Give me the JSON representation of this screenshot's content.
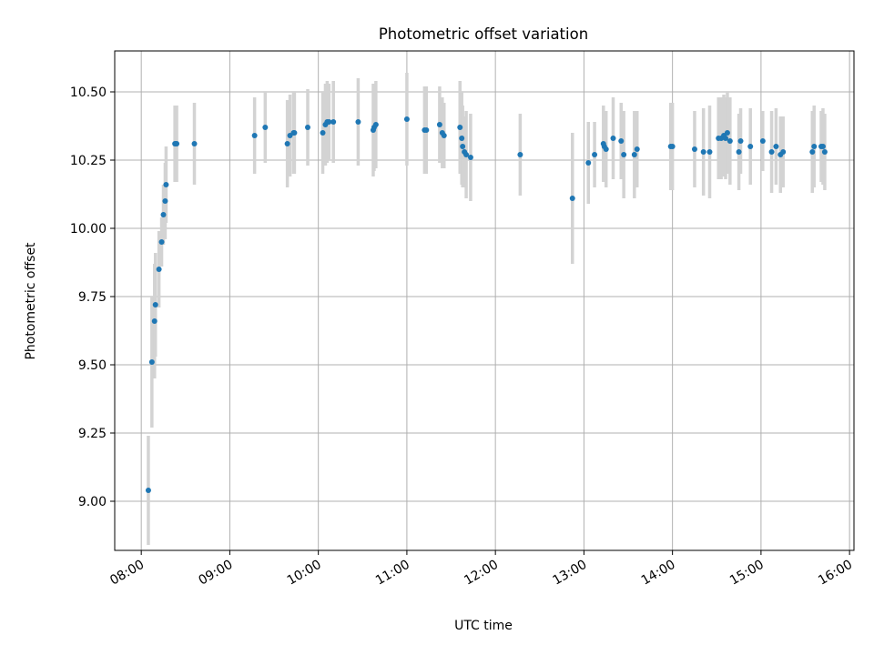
{
  "chart_data": {
    "type": "scatter",
    "title": "Photometric offset variation",
    "xlabel": "UTC time",
    "ylabel": "Photometric offset",
    "xlim": [
      7.7,
      16.05
    ],
    "ylim": [
      8.82,
      10.65
    ],
    "grid": true,
    "x_ticks": [
      {
        "value": 8,
        "label": "08:00"
      },
      {
        "value": 9,
        "label": "09:00"
      },
      {
        "value": 10,
        "label": "10:00"
      },
      {
        "value": 11,
        "label": "11:00"
      },
      {
        "value": 12,
        "label": "12:00"
      },
      {
        "value": 13,
        "label": "13:00"
      },
      {
        "value": 14,
        "label": "14:00"
      },
      {
        "value": 15,
        "label": "15:00"
      },
      {
        "value": 16,
        "label": "16:00"
      }
    ],
    "y_ticks": [
      {
        "value": 9.0,
        "label": "9.00"
      },
      {
        "value": 9.25,
        "label": "9.25"
      },
      {
        "value": 9.5,
        "label": "9.50"
      },
      {
        "value": 9.75,
        "label": "9.75"
      },
      {
        "value": 10.0,
        "label": "10.00"
      },
      {
        "value": 10.25,
        "label": "10.25"
      },
      {
        "value": 10.5,
        "label": "10.50"
      }
    ],
    "colors": {
      "point": "#1f77b4",
      "errorbar": "#d3d3d3",
      "grid": "#b0b0b0",
      "axis": "#000000"
    },
    "series": [
      {
        "name": "offset",
        "x": [
          8.08,
          8.12,
          8.15,
          8.16,
          8.2,
          8.23,
          8.25,
          8.27,
          8.28,
          8.38,
          8.39,
          8.4,
          8.6,
          9.28,
          9.4,
          9.65,
          9.68,
          9.72,
          9.73,
          9.88,
          10.05,
          10.08,
          10.1,
          10.12,
          10.17,
          10.45,
          10.62,
          10.63,
          10.65,
          11.0,
          11.2,
          11.22,
          11.37,
          11.4,
          11.42,
          11.6,
          11.62,
          11.63,
          11.65,
          11.67,
          11.72,
          12.28,
          12.87,
          13.05,
          13.12,
          13.22,
          13.23,
          13.25,
          13.33,
          13.42,
          13.45,
          13.57,
          13.6,
          13.98,
          14.0,
          14.25,
          14.35,
          14.42,
          14.52,
          14.55,
          14.58,
          14.6,
          14.62,
          14.65,
          14.75,
          14.77,
          14.88,
          15.02,
          15.12,
          15.17,
          15.22,
          15.25,
          15.58,
          15.6,
          15.68,
          15.7,
          15.72
        ],
        "y": [
          9.04,
          9.51,
          9.66,
          9.72,
          9.85,
          9.95,
          10.05,
          10.1,
          10.16,
          10.31,
          10.31,
          10.31,
          10.31,
          10.34,
          10.37,
          10.31,
          10.34,
          10.35,
          10.35,
          10.37,
          10.35,
          10.38,
          10.39,
          10.39,
          10.39,
          10.39,
          10.36,
          10.37,
          10.38,
          10.4,
          10.36,
          10.36,
          10.38,
          10.35,
          10.34,
          10.37,
          10.33,
          10.3,
          10.28,
          10.27,
          10.26,
          10.27,
          10.11,
          10.24,
          10.27,
          10.31,
          10.3,
          10.29,
          10.33,
          10.32,
          10.27,
          10.27,
          10.29,
          10.3,
          10.3,
          10.29,
          10.28,
          10.28,
          10.33,
          10.33,
          10.34,
          10.33,
          10.35,
          10.32,
          10.28,
          10.32,
          10.3,
          10.32,
          10.28,
          10.3,
          10.27,
          10.28,
          10.28,
          10.3,
          10.3,
          10.3,
          10.28
        ],
        "error": [
          0.2,
          0.24,
          0.21,
          0.19,
          0.14,
          0.09,
          0.11,
          0.14,
          0.14,
          0.14,
          0.14,
          0.14,
          0.15,
          0.14,
          0.13,
          0.16,
          0.15,
          0.15,
          0.15,
          0.14,
          0.15,
          0.15,
          0.15,
          0.14,
          0.15,
          0.16,
          0.17,
          0.16,
          0.16,
          0.17,
          0.16,
          0.16,
          0.14,
          0.13,
          0.12,
          0.17,
          0.17,
          0.15,
          0.13,
          0.16,
          0.16,
          0.15,
          0.24,
          0.15,
          0.12,
          0.14,
          0.13,
          0.14,
          0.15,
          0.14,
          0.16,
          0.16,
          0.14,
          0.16,
          0.16,
          0.14,
          0.16,
          0.17,
          0.15,
          0.15,
          0.15,
          0.15,
          0.15,
          0.16,
          0.14,
          0.12,
          0.14,
          0.11,
          0.15,
          0.14,
          0.14,
          0.13,
          0.15,
          0.15,
          0.13,
          0.14,
          0.14
        ]
      }
    ]
  }
}
